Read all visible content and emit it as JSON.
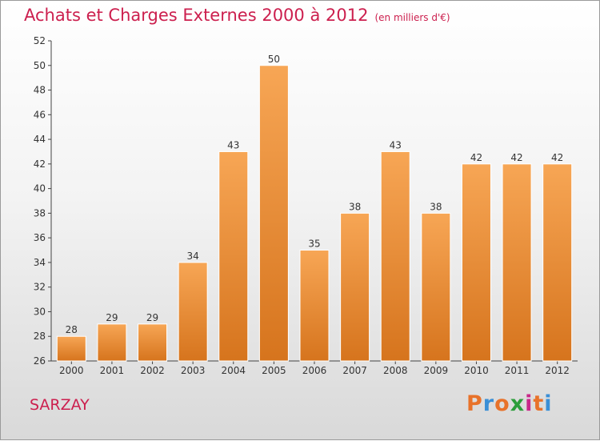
{
  "header": {
    "title": "Achats et Charges Externes 2000 à 2012",
    "unit": "(en milliers d'€)"
  },
  "location": "SARZAY",
  "logo": {
    "text": "Proxiti",
    "colors": [
      "#e8722a",
      "#3a8fd6",
      "#e8722a",
      "#2c9e3b",
      "#c9288a",
      "#e8722a",
      "#3a8fd6"
    ]
  },
  "colors": {
    "bar_light": "#f7a655",
    "bar_dark": "#d6741d",
    "title": "#cc1f4e"
  },
  "chart_data": {
    "type": "bar",
    "title": "Achats et Charges Externes 2000 à 2012",
    "categories": [
      "2000",
      "2001",
      "2002",
      "2003",
      "2004",
      "2005",
      "2006",
      "2007",
      "2008",
      "2009",
      "2010",
      "2011",
      "2012"
    ],
    "values": [
      28,
      29,
      29,
      34,
      43,
      50,
      35,
      38,
      43,
      38,
      42,
      42,
      42
    ],
    "ylim": [
      26,
      52
    ],
    "yticks": [
      26,
      28,
      30,
      32,
      34,
      36,
      38,
      40,
      42,
      44,
      46,
      48,
      50,
      52
    ],
    "grid": false,
    "xlabel": "",
    "ylabel": ""
  }
}
